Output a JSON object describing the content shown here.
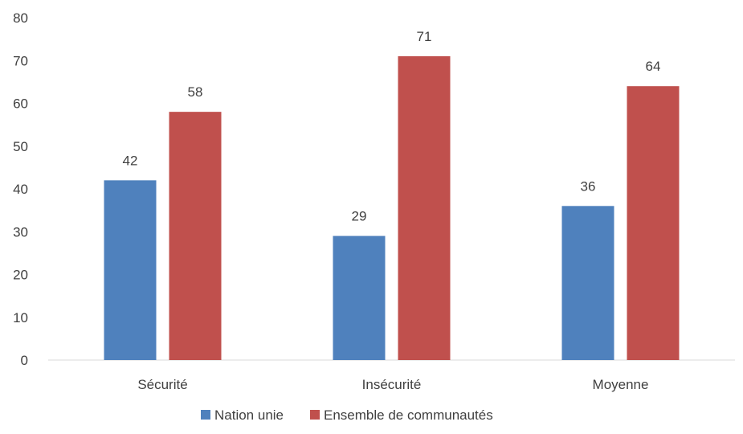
{
  "chart_data": {
    "type": "bar",
    "categories": [
      "Sécurité",
      "Insécurité",
      "Moyenne"
    ],
    "series": [
      {
        "name": "Nation unie",
        "values": [
          42,
          29,
          36
        ],
        "color": "#4f81bd"
      },
      {
        "name": "Ensemble de communautés",
        "values": [
          58,
          71,
          64
        ],
        "color": "#c0504d"
      }
    ],
    "ylim": [
      0,
      80
    ],
    "yticks": [
      0,
      10,
      20,
      30,
      40,
      50,
      60,
      70,
      80
    ],
    "grid": false,
    "legend_position": "bottom",
    "data_labels": true,
    "axis_color": "#d9d9d9",
    "text_color": "#404040"
  }
}
